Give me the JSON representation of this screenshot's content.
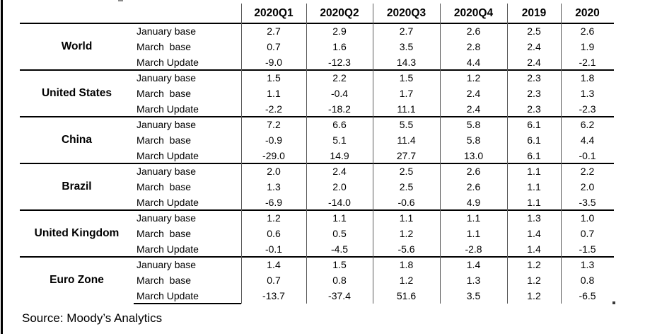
{
  "page": {
    "source_note": "Source: Moody’s Analytics"
  },
  "table": {
    "column_headers": [
      "2020Q1",
      "2020Q2",
      "2020Q3",
      "2020Q4",
      "2019",
      "2020"
    ],
    "scenario_labels": [
      "January base",
      "March  base",
      "March Update"
    ],
    "groups": [
      {
        "country": "World",
        "rows": [
          [
            "2.7",
            "2.9",
            "2.7",
            "2.6",
            "2.5",
            "2.6"
          ],
          [
            "0.7",
            "1.6",
            "3.5",
            "2.8",
            "2.4",
            "1.9"
          ],
          [
            "-9.0",
            "-12.3",
            "14.3",
            "4.4",
            "2.4",
            "-2.1"
          ]
        ]
      },
      {
        "country": "United States",
        "rows": [
          [
            "1.5",
            "2.2",
            "1.5",
            "1.2",
            "2.3",
            "1.8"
          ],
          [
            "1.1",
            "-0.4",
            "1.7",
            "2.4",
            "2.3",
            "1.3"
          ],
          [
            "-2.2",
            "-18.2",
            "11.1",
            "2.4",
            "2.3",
            "-2.3"
          ]
        ]
      },
      {
        "country": "China",
        "rows": [
          [
            "7.2",
            "6.6",
            "5.5",
            "5.8",
            "6.1",
            "6.2"
          ],
          [
            "-0.9",
            "5.1",
            "11.4",
            "5.8",
            "6.1",
            "4.4"
          ],
          [
            "-29.0",
            "14.9",
            "27.7",
            "13.0",
            "6.1",
            "-0.1"
          ]
        ]
      },
      {
        "country": "Brazil",
        "rows": [
          [
            "2.0",
            "2.4",
            "2.5",
            "2.6",
            "1.1",
            "2.2"
          ],
          [
            "1.3",
            "2.0",
            "2.5",
            "2.6",
            "1.1",
            "2.0"
          ],
          [
            "-6.9",
            "-14.0",
            "-0.6",
            "4.9",
            "1.1",
            "-3.5"
          ]
        ]
      },
      {
        "country": "United Kingdom",
        "rows": [
          [
            "1.2",
            "1.1",
            "1.1",
            "1.1",
            "1.3",
            "1.0"
          ],
          [
            "0.6",
            "0.5",
            "1.2",
            "1.1",
            "1.4",
            "0.7"
          ],
          [
            "-0.1",
            "-4.5",
            "-5.6",
            "-2.8",
            "1.4",
            "-1.5"
          ]
        ]
      },
      {
        "country": "Euro Zone",
        "rows": [
          [
            "1.4",
            "1.5",
            "1.8",
            "1.4",
            "1.2",
            "1.3"
          ],
          [
            "0.7",
            "0.8",
            "1.2",
            "1.3",
            "1.2",
            "0.8"
          ],
          [
            "-13.7",
            "-37.4",
            "51.6",
            "3.5",
            "1.2",
            "-6.5"
          ]
        ]
      }
    ]
  },
  "chart_data": {
    "type": "table",
    "title": "",
    "columns": [
      "2020Q1",
      "2020Q2",
      "2020Q3",
      "2020Q4",
      "2019",
      "2020"
    ],
    "row_groups": [
      "World",
      "United States",
      "China",
      "Brazil",
      "United Kingdom",
      "Euro Zone"
    ],
    "scenarios": [
      "January base",
      "March base",
      "March Update"
    ],
    "values": {
      "World": [
        [
          2.7,
          2.9,
          2.7,
          2.6,
          2.5,
          2.6
        ],
        [
          0.7,
          1.6,
          3.5,
          2.8,
          2.4,
          1.9
        ],
        [
          -9.0,
          -12.3,
          14.3,
          4.4,
          2.4,
          -2.1
        ]
      ],
      "United States": [
        [
          1.5,
          2.2,
          1.5,
          1.2,
          2.3,
          1.8
        ],
        [
          1.1,
          -0.4,
          1.7,
          2.4,
          2.3,
          1.3
        ],
        [
          -2.2,
          -18.2,
          11.1,
          2.4,
          2.3,
          -2.3
        ]
      ],
      "China": [
        [
          7.2,
          6.6,
          5.5,
          5.8,
          6.1,
          6.2
        ],
        [
          -0.9,
          5.1,
          11.4,
          5.8,
          6.1,
          4.4
        ],
        [
          -29.0,
          14.9,
          27.7,
          13.0,
          6.1,
          -0.1
        ]
      ],
      "Brazil": [
        [
          2.0,
          2.4,
          2.5,
          2.6,
          1.1,
          2.2
        ],
        [
          1.3,
          2.0,
          2.5,
          2.6,
          1.1,
          2.0
        ],
        [
          -6.9,
          -14.0,
          -0.6,
          4.9,
          1.1,
          -3.5
        ]
      ],
      "United Kingdom": [
        [
          1.2,
          1.1,
          1.1,
          1.1,
          1.3,
          1.0
        ],
        [
          0.6,
          0.5,
          1.2,
          1.1,
          1.4,
          0.7
        ],
        [
          -0.1,
          -4.5,
          -5.6,
          -2.8,
          1.4,
          -1.5
        ]
      ],
      "Euro Zone": [
        [
          1.4,
          1.5,
          1.8,
          1.4,
          1.2,
          1.3
        ],
        [
          0.7,
          0.8,
          1.2,
          1.3,
          1.2,
          0.8
        ],
        [
          -13.7,
          -37.4,
          51.6,
          3.5,
          1.2,
          -6.5
        ]
      ]
    },
    "source": "Source: Moody’s Analytics"
  }
}
